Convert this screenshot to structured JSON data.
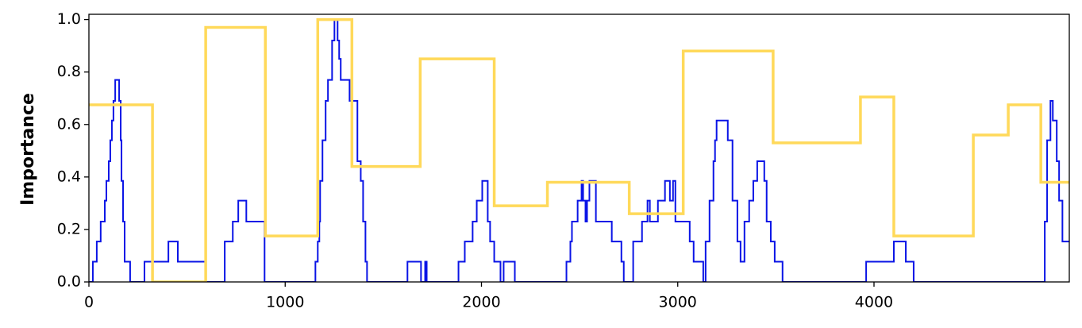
{
  "chart_data": {
    "type": "line",
    "step": "post",
    "ylabel": "Importance",
    "xlim": [
      0,
      4995
    ],
    "ylim": [
      0,
      1.02
    ],
    "xticks": [
      0,
      1000,
      2000,
      3000,
      4000
    ],
    "yticks": [
      {
        "value": 0,
        "label": "0.0"
      },
      {
        "value": 0.2,
        "label": "0.2"
      },
      {
        "value": 0.4,
        "label": "0.4"
      },
      {
        "value": 0.6,
        "label": "0.6"
      },
      {
        "value": 0.8,
        "label": "0.8"
      },
      {
        "value": 1.0,
        "label": "1.0"
      }
    ],
    "series": [
      {
        "color": "#0a14e6",
        "width": 2,
        "x": [
          0,
          20,
          40,
          60,
          81,
          89,
          101,
          109,
          117,
          125,
          134,
          154,
          162,
          166,
          174,
          182,
          210,
          283,
          405,
          453,
          595,
          692,
          733,
          761,
          802,
          895,
          1154,
          1166,
          1174,
          1178,
          1190,
          1206,
          1218,
          1239,
          1251,
          1267,
          1275,
          1283,
          1328,
          1368,
          1385,
          1397,
          1409,
          1417,
          1623,
          1692,
          1713,
          1721,
          1883,
          1915,
          1955,
          1976,
          2004,
          2032,
          2044,
          2065,
          2097,
          2113,
          2170,
          2433,
          2453,
          2461,
          2490,
          2510,
          2518,
          2530,
          2538,
          2550,
          2583,
          2664,
          2713,
          2725,
          2773,
          2818,
          2846,
          2858,
          2899,
          2935,
          2960,
          2976,
          2988,
          3061,
          3081,
          3130,
          3142,
          3162,
          3182,
          3190,
          3198,
          3255,
          3279,
          3304,
          3320,
          3340,
          3364,
          3385,
          3405,
          3441,
          3453,
          3474,
          3494,
          3534,
          3960,
          4101,
          4162,
          4202,
          4870,
          4882,
          4899,
          4911,
          4931,
          4943,
          4960,
          4995
        ],
        "values": [
          0,
          0.077,
          0.154,
          0.23,
          0.31,
          0.385,
          0.46,
          0.54,
          0.615,
          0.69,
          0.77,
          0.69,
          0.54,
          0.385,
          0.23,
          0.077,
          0,
          0.077,
          0.154,
          0.077,
          0,
          0.154,
          0.23,
          0.31,
          0.23,
          0,
          0.077,
          0.154,
          0.23,
          0.385,
          0.54,
          0.69,
          0.77,
          0.92,
          1.0,
          0.92,
          0.85,
          0.77,
          0.69,
          0.46,
          0.385,
          0.23,
          0.077,
          0,
          0.077,
          0,
          0.077,
          0,
          0.077,
          0.154,
          0.23,
          0.31,
          0.385,
          0.23,
          0.154,
          0.077,
          0,
          0.077,
          0,
          0.077,
          0.154,
          0.23,
          0.31,
          0.385,
          0.31,
          0.23,
          0.31,
          0.385,
          0.23,
          0.154,
          0.077,
          0,
          0.154,
          0.23,
          0.31,
          0.23,
          0.31,
          0.385,
          0.31,
          0.385,
          0.23,
          0.154,
          0.077,
          0,
          0.154,
          0.31,
          0.46,
          0.54,
          0.615,
          0.54,
          0.31,
          0.154,
          0.077,
          0.23,
          0.31,
          0.385,
          0.46,
          0.385,
          0.23,
          0.154,
          0.077,
          0,
          0.077,
          0.154,
          0.077,
          0,
          0.23,
          0.54,
          0.69,
          0.615,
          0.46,
          0.31,
          0.154,
          0.154
        ]
      },
      {
        "color": "#ffd95a",
        "width": 3.5,
        "x": [
          0,
          324,
          595,
          899,
          1166,
          1340,
          1688,
          2065,
          2336,
          2753,
          3028,
          3486,
          3931,
          4101,
          4506,
          4684,
          4850,
          4995
        ],
        "values": [
          0.675,
          0,
          0.97,
          0.175,
          1.0,
          0.44,
          0.85,
          0.29,
          0.38,
          0.26,
          0.88,
          0.53,
          0.705,
          0.175,
          0.56,
          0.675,
          0.38,
          0.38
        ]
      }
    ]
  }
}
